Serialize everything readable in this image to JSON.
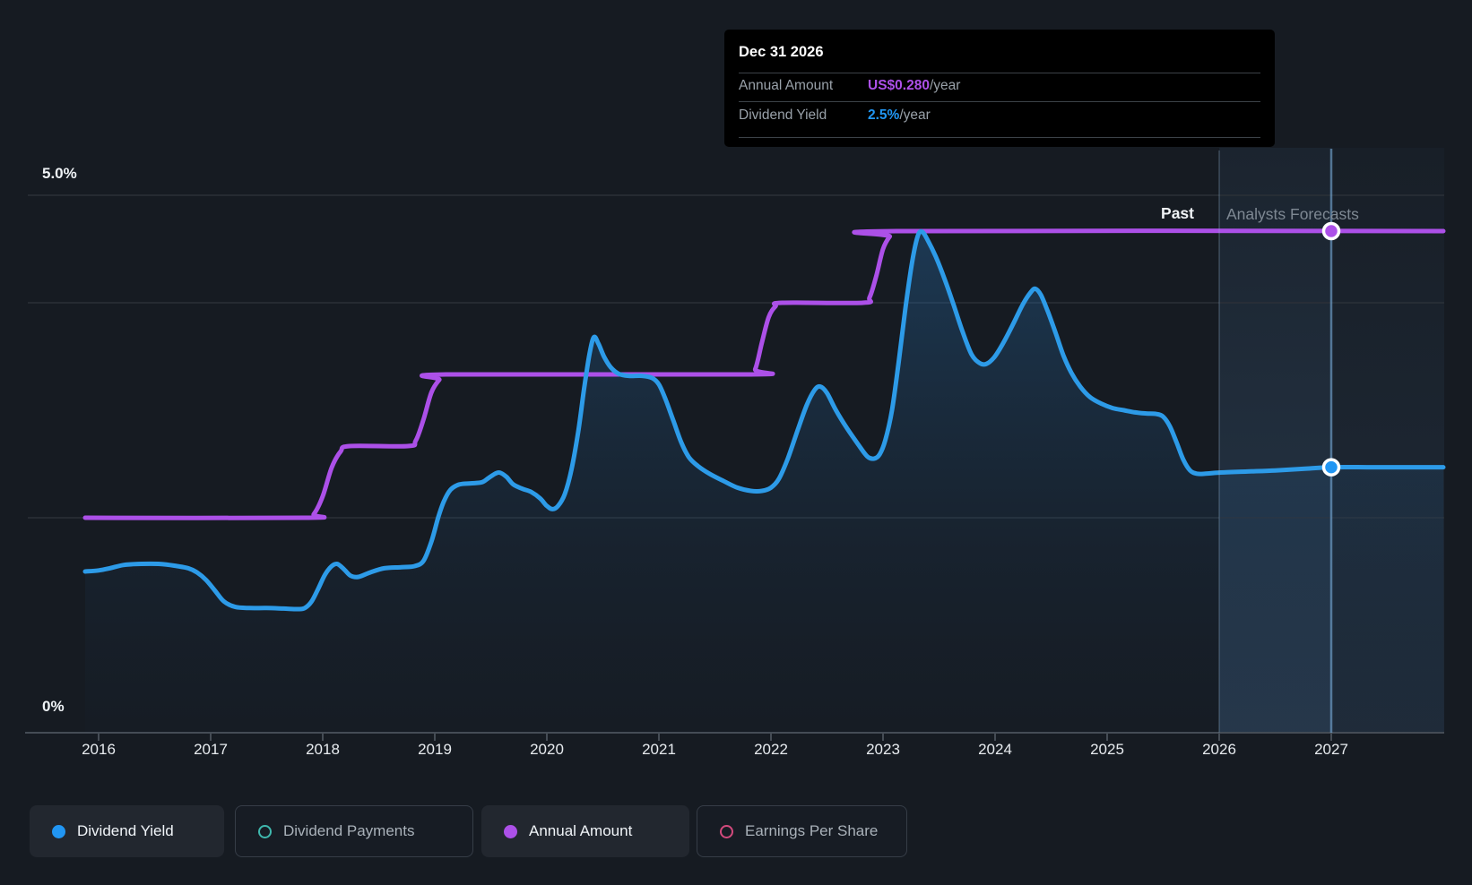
{
  "axis": {
    "y_top_label": "5.0%",
    "y_bottom_label": "0%"
  },
  "regions": {
    "past_label": "Past",
    "forecast_label": "Analysts Forecasts"
  },
  "tooltip": {
    "title": "Dec 31 2026",
    "rows": [
      {
        "label": "Annual Amount",
        "value": "US$0.280",
        "suffix": "/year",
        "color": "#AC50E8"
      },
      {
        "label": "Dividend Yield",
        "value": "2.5%",
        "suffix": "/year",
        "color": "#2196F3"
      }
    ]
  },
  "legend": {
    "items": [
      {
        "label": "Dividend Yield",
        "color": "#2196F3",
        "style": "filled",
        "active": true
      },
      {
        "label": "Dividend Payments",
        "color": "#3FB8AE",
        "style": "hollow",
        "active": false
      },
      {
        "label": "Annual Amount",
        "color": "#AC50E8",
        "style": "filled",
        "active": true
      },
      {
        "label": "Earnings Per Share",
        "color": "#D34A7D",
        "style": "hollow",
        "active": false
      }
    ]
  },
  "chart_data": {
    "type": "line",
    "x_ticks": [
      "2016",
      "2017",
      "2018",
      "2019",
      "2020",
      "2021",
      "2022",
      "2023",
      "2024",
      "2025",
      "2026",
      "2027"
    ],
    "xlim": [
      2015.88,
      2028.0
    ],
    "ylim_percent": [
      0,
      5
    ],
    "gridlines_pct": [
      5,
      4,
      2,
      0
    ],
    "divider_year": 2026,
    "hover_year": 2027,
    "hover": {
      "date": "Dec 31 2026",
      "annual_amount": "US$0.280/year",
      "dividend_yield": "2.5%/year"
    },
    "series": [
      {
        "name": "Dividend Yield",
        "unit": "%",
        "color": "#2D9BE8",
        "area": true,
        "points": [
          [
            2015.88,
            1.5
          ],
          [
            2016.0,
            1.51
          ],
          [
            2016.1,
            1.53
          ],
          [
            2016.22,
            1.56
          ],
          [
            2016.35,
            1.57
          ],
          [
            2016.55,
            1.57
          ],
          [
            2016.7,
            1.55
          ],
          [
            2016.8,
            1.53
          ],
          [
            2016.88,
            1.49
          ],
          [
            2016.96,
            1.42
          ],
          [
            2017.04,
            1.32
          ],
          [
            2017.12,
            1.22
          ],
          [
            2017.22,
            1.17
          ],
          [
            2017.35,
            1.16
          ],
          [
            2017.5,
            1.16
          ],
          [
            2017.65,
            1.155
          ],
          [
            2017.78,
            1.15
          ],
          [
            2017.84,
            1.16
          ],
          [
            2017.9,
            1.22
          ],
          [
            2017.96,
            1.34
          ],
          [
            2018.02,
            1.47
          ],
          [
            2018.08,
            1.55
          ],
          [
            2018.13,
            1.57
          ],
          [
            2018.19,
            1.52
          ],
          [
            2018.25,
            1.46
          ],
          [
            2018.32,
            1.45
          ],
          [
            2018.42,
            1.49
          ],
          [
            2018.55,
            1.53
          ],
          [
            2018.7,
            1.54
          ],
          [
            2018.82,
            1.55
          ],
          [
            2018.9,
            1.6
          ],
          [
            2018.97,
            1.78
          ],
          [
            2019.03,
            2.0
          ],
          [
            2019.08,
            2.15
          ],
          [
            2019.14,
            2.26
          ],
          [
            2019.22,
            2.31
          ],
          [
            2019.32,
            2.32
          ],
          [
            2019.42,
            2.33
          ],
          [
            2019.48,
            2.37
          ],
          [
            2019.54,
            2.41
          ],
          [
            2019.58,
            2.42
          ],
          [
            2019.64,
            2.38
          ],
          [
            2019.7,
            2.31
          ],
          [
            2019.78,
            2.27
          ],
          [
            2019.86,
            2.24
          ],
          [
            2019.94,
            2.18
          ],
          [
            2020.0,
            2.11
          ],
          [
            2020.05,
            2.08
          ],
          [
            2020.1,
            2.11
          ],
          [
            2020.16,
            2.22
          ],
          [
            2020.22,
            2.45
          ],
          [
            2020.28,
            2.8
          ],
          [
            2020.33,
            3.18
          ],
          [
            2020.38,
            3.52
          ],
          [
            2020.42,
            3.68
          ],
          [
            2020.46,
            3.62
          ],
          [
            2020.51,
            3.5
          ],
          [
            2020.57,
            3.4
          ],
          [
            2020.64,
            3.34
          ],
          [
            2020.73,
            3.32
          ],
          [
            2020.85,
            3.32
          ],
          [
            2020.94,
            3.3
          ],
          [
            2021.0,
            3.24
          ],
          [
            2021.06,
            3.1
          ],
          [
            2021.13,
            2.9
          ],
          [
            2021.2,
            2.7
          ],
          [
            2021.27,
            2.56
          ],
          [
            2021.35,
            2.48
          ],
          [
            2021.45,
            2.41
          ],
          [
            2021.58,
            2.34
          ],
          [
            2021.7,
            2.28
          ],
          [
            2021.82,
            2.25
          ],
          [
            2021.92,
            2.25
          ],
          [
            2022.0,
            2.28
          ],
          [
            2022.07,
            2.36
          ],
          [
            2022.15,
            2.55
          ],
          [
            2022.24,
            2.82
          ],
          [
            2022.32,
            3.05
          ],
          [
            2022.39,
            3.19
          ],
          [
            2022.44,
            3.22
          ],
          [
            2022.5,
            3.16
          ],
          [
            2022.58,
            3.0
          ],
          [
            2022.68,
            2.83
          ],
          [
            2022.78,
            2.68
          ],
          [
            2022.86,
            2.57
          ],
          [
            2022.92,
            2.55
          ],
          [
            2022.97,
            2.59
          ],
          [
            2023.02,
            2.72
          ],
          [
            2023.08,
            3.0
          ],
          [
            2023.14,
            3.45
          ],
          [
            2023.2,
            3.95
          ],
          [
            2023.26,
            4.38
          ],
          [
            2023.31,
            4.62
          ],
          [
            2023.35,
            4.66
          ],
          [
            2023.4,
            4.58
          ],
          [
            2023.47,
            4.43
          ],
          [
            2023.55,
            4.22
          ],
          [
            2023.63,
            3.98
          ],
          [
            2023.71,
            3.73
          ],
          [
            2023.79,
            3.52
          ],
          [
            2023.86,
            3.44
          ],
          [
            2023.92,
            3.43
          ],
          [
            2023.99,
            3.49
          ],
          [
            2024.07,
            3.62
          ],
          [
            2024.16,
            3.8
          ],
          [
            2024.25,
            3.99
          ],
          [
            2024.32,
            4.1
          ],
          [
            2024.36,
            4.13
          ],
          [
            2024.41,
            4.07
          ],
          [
            2024.47,
            3.92
          ],
          [
            2024.54,
            3.72
          ],
          [
            2024.61,
            3.51
          ],
          [
            2024.68,
            3.35
          ],
          [
            2024.76,
            3.22
          ],
          [
            2024.85,
            3.12
          ],
          [
            2024.95,
            3.06
          ],
          [
            2025.05,
            3.02
          ],
          [
            2025.15,
            3.0
          ],
          [
            2025.25,
            2.98
          ],
          [
            2025.35,
            2.97
          ],
          [
            2025.44,
            2.965
          ],
          [
            2025.5,
            2.94
          ],
          [
            2025.56,
            2.85
          ],
          [
            2025.62,
            2.7
          ],
          [
            2025.68,
            2.54
          ],
          [
            2025.74,
            2.44
          ],
          [
            2025.8,
            2.41
          ],
          [
            2025.88,
            2.41
          ],
          [
            2026.0,
            2.42
          ],
          [
            2026.25,
            2.43
          ],
          [
            2026.5,
            2.44
          ],
          [
            2026.75,
            2.455
          ],
          [
            2027.0,
            2.47
          ],
          [
            2027.4,
            2.47
          ],
          [
            2028.0,
            2.47
          ]
        ]
      },
      {
        "name": "Annual Amount",
        "unit": "US$/year",
        "color": "#AC50E8",
        "area": false,
        "step_levels": [
          0.12,
          0.16,
          0.2,
          0.24,
          0.28
        ],
        "points": [
          [
            2015.88,
            0.12
          ],
          [
            2017.85,
            0.12
          ],
          [
            2017.92,
            0.122
          ],
          [
            2018.0,
            0.132
          ],
          [
            2018.08,
            0.148
          ],
          [
            2018.16,
            0.157
          ],
          [
            2018.24,
            0.16
          ],
          [
            2018.76,
            0.16
          ],
          [
            2018.83,
            0.163
          ],
          [
            2018.9,
            0.175
          ],
          [
            2018.97,
            0.19
          ],
          [
            2019.04,
            0.197
          ],
          [
            2019.1,
            0.2
          ],
          [
            2021.8,
            0.2
          ],
          [
            2021.86,
            0.203
          ],
          [
            2021.92,
            0.218
          ],
          [
            2021.98,
            0.232
          ],
          [
            2022.04,
            0.238
          ],
          [
            2022.1,
            0.24
          ],
          [
            2022.82,
            0.24
          ],
          [
            2022.88,
            0.243
          ],
          [
            2022.94,
            0.255
          ],
          [
            2023.0,
            0.27
          ],
          [
            2023.06,
            0.277
          ],
          [
            2023.12,
            0.28
          ],
          [
            2028.0,
            0.28
          ]
        ]
      }
    ]
  }
}
